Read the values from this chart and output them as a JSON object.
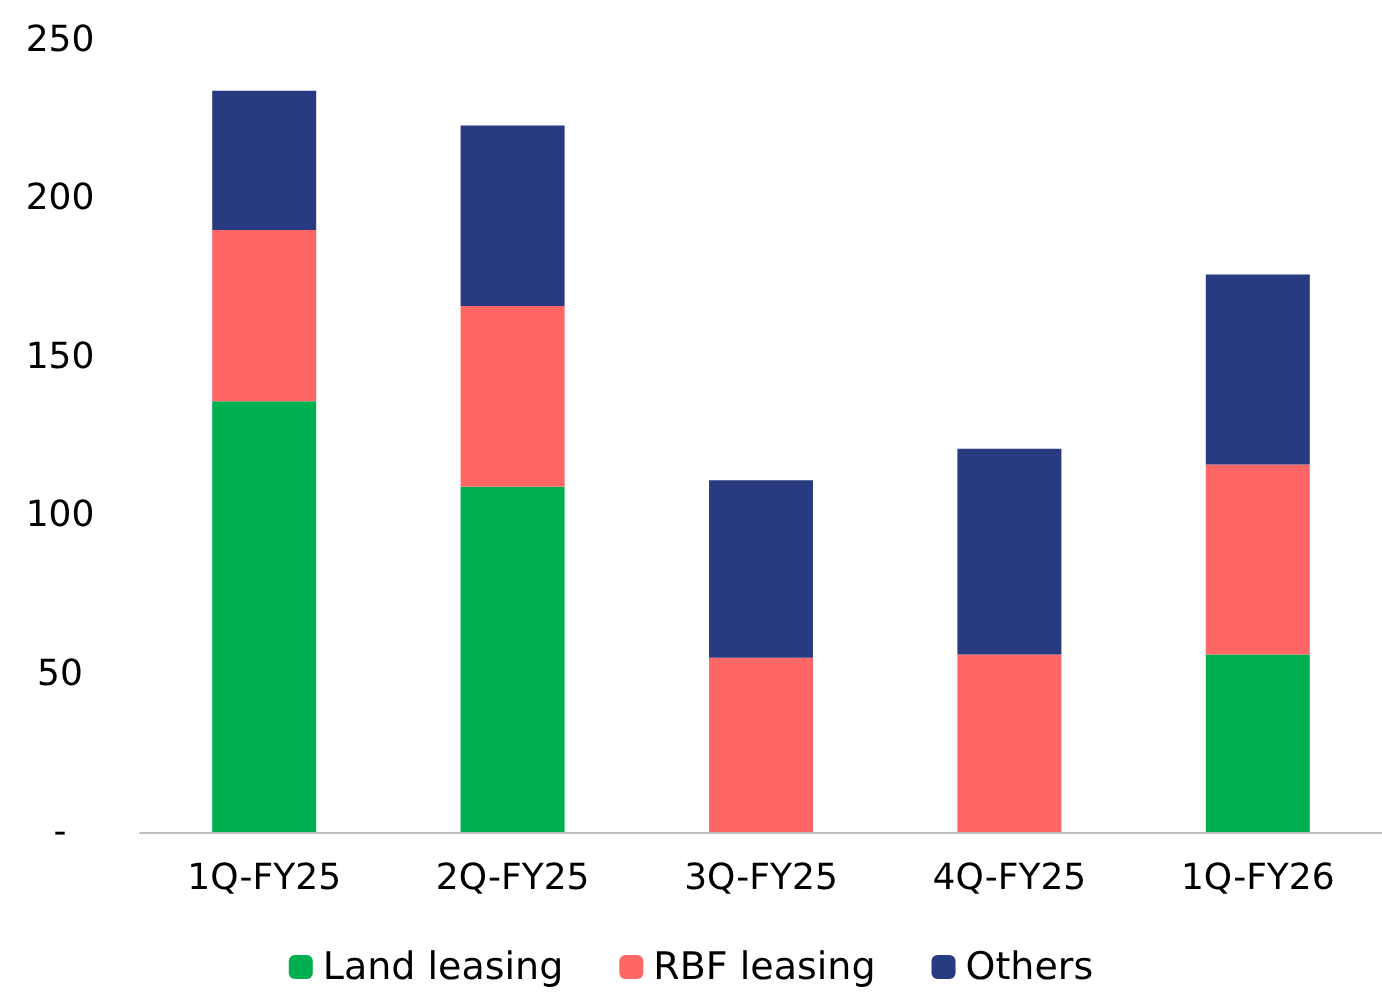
{
  "chart_data": {
    "type": "bar",
    "stacked": true,
    "categories": [
      "1Q-FY25",
      "2Q-FY25",
      "3Q-FY25",
      "4Q-FY25",
      "1Q-FY26"
    ],
    "series": [
      {
        "name": "Land leasing",
        "color": "#00b050",
        "values": [
          136,
          109,
          0,
          0,
          56
        ]
      },
      {
        "name": "RBF leasing",
        "color": "#ff6666",
        "values": [
          54,
          57,
          55,
          56,
          60
        ]
      },
      {
        "name": "Others",
        "color": "#283a80",
        "values": [
          44,
          57,
          56,
          65,
          60
        ]
      }
    ],
    "ylim": [
      0,
      250
    ],
    "yticks": [
      {
        "value": 0,
        "label": "-"
      },
      50,
      100,
      150,
      200,
      250
    ],
    "grid": false,
    "legend": "bottom"
  }
}
